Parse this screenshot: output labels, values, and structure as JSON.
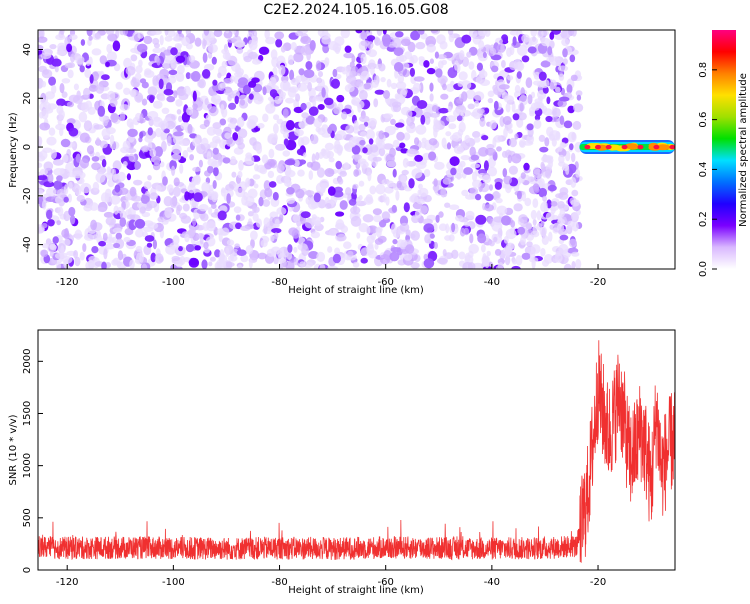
{
  "title": "C2E2.2024.105.16.05.G08",
  "chart_data": [
    {
      "type": "heatmap",
      "title": "C2E2.2024.105.16.05.G08",
      "xlabel": "Height of straight line (km)",
      "ylabel": "Frequency (Hz)",
      "xlim": [
        -125.5,
        -5.5
      ],
      "ylim": [
        -50,
        48
      ],
      "x_ticks": [
        "-120",
        "-100",
        "-80",
        "-60",
        "-40",
        "-20"
      ],
      "x_tick_values": [
        -120,
        -100,
        -80,
        -60,
        -40,
        -20
      ],
      "y_ticks": [
        "-40",
        "-20",
        "0",
        "20",
        "40"
      ],
      "y_tick_values": [
        -40,
        -20,
        0,
        20,
        40
      ],
      "grid": false,
      "noise_region": {
        "x": [
          -125.5,
          -23.5
        ],
        "y": [
          -50,
          48
        ],
        "amplitude": [
          0.0,
          0.1
        ]
      },
      "signal_band": {
        "x": [
          -23.5,
          -5.5
        ],
        "y": [
          -3,
          3
        ],
        "peak_amplitude": 1.0
      },
      "signal_peaks_x": [
        -22,
        -20,
        -18,
        -15,
        -12,
        -9,
        -6
      ],
      "colorbar": {
        "label": "Normalized spectral amplitude",
        "ticks": [
          "0.0",
          "0.2",
          "0.4",
          "0.6",
          "0.8"
        ],
        "tick_values": [
          0.0,
          0.2,
          0.4,
          0.6,
          0.8
        ],
        "range": [
          0,
          0.96
        ],
        "colors": [
          "#ffffff",
          "#d9b8ff",
          "#7a00ff",
          "#2000ff",
          "#0070ff",
          "#00e0ff",
          "#00e000",
          "#a0e000",
          "#ffe000",
          "#ff8000",
          "#ff0000",
          "#ff0080"
        ]
      }
    },
    {
      "type": "line",
      "xlabel": "Height of straight line (km)",
      "ylabel": "SNR (10 * v/v)",
      "xlim": [
        -125.5,
        -5.5
      ],
      "ylim": [
        0,
        2300
      ],
      "x_ticks": [
        "-120",
        "-100",
        "-80",
        "-60",
        "-40",
        "-20"
      ],
      "x_tick_values": [
        -120,
        -100,
        -80,
        -60,
        -40,
        -20
      ],
      "y_ticks": [
        "0",
        "500",
        "1000",
        "1500",
        "2000"
      ],
      "y_tick_values": [
        0,
        500,
        1000,
        1500,
        2000
      ],
      "grid": false,
      "line_color": "#f03030",
      "x": [
        -125,
        -120,
        -110,
        -100,
        -90,
        -80,
        -70,
        -60,
        -50,
        -40,
        -30,
        -24,
        -23,
        -22,
        -21,
        -20,
        -19,
        -18,
        -17,
        -16,
        -15,
        -14,
        -13,
        -12,
        -11,
        -10,
        -9,
        -8,
        -7,
        -6
      ],
      "y": [
        220,
        210,
        215,
        210,
        205,
        210,
        205,
        215,
        210,
        205,
        210,
        230,
        450,
        700,
        1200,
        1750,
        1500,
        1300,
        1450,
        1700,
        1400,
        1050,
        1150,
        1350,
        1150,
        800,
        1500,
        950,
        1100,
        1250
      ]
    }
  ]
}
